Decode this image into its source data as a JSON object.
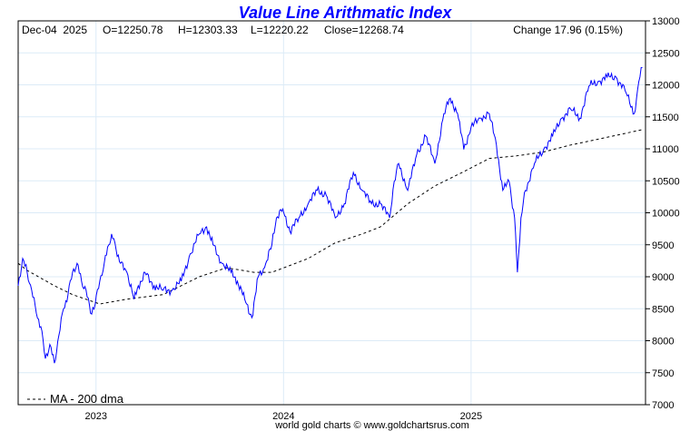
{
  "chart_data": {
    "type": "line",
    "title": "Value Line Arithmatic Index",
    "info": {
      "date": "Dec-04  2025",
      "open": "O=12250.78",
      "high": "H=12303.33",
      "low": "L=12220.22",
      "close": "Close=12268.74",
      "change": "Change 17.96 (0.15%)"
    },
    "ylim": [
      7000,
      13000
    ],
    "yticks": [
      7000,
      7500,
      8000,
      8500,
      9000,
      9500,
      10000,
      10500,
      11000,
      11500,
      12000,
      12500,
      13000
    ],
    "xlim": [
      2022.585,
      2025.93
    ],
    "xticks": [
      {
        "value": 2023,
        "label": "2023"
      },
      {
        "value": 2024,
        "label": "2024"
      },
      {
        "value": 2025,
        "label": "2025"
      }
    ],
    "grid": true,
    "legend": {
      "label": "MA - 200 dma",
      "position": "bottom-left"
    },
    "footer": "world gold charts © www.goldchartsrus.com",
    "colors": {
      "price": "#0000ff",
      "ma": "#000000",
      "title": "#0000ff",
      "grid": "#dcebf7"
    },
    "series": [
      {
        "name": "Price",
        "points": [
          [
            2022.585,
            8860
          ],
          [
            2022.609,
            9285
          ],
          [
            2022.633,
            9070
          ],
          [
            2022.657,
            8790
          ],
          [
            2022.682,
            8430
          ],
          [
            2022.706,
            8220
          ],
          [
            2022.73,
            7720
          ],
          [
            2022.754,
            7940
          ],
          [
            2022.778,
            7650
          ],
          [
            2022.802,
            8080
          ],
          [
            2022.827,
            8500
          ],
          [
            2022.851,
            8720
          ],
          [
            2022.875,
            9070
          ],
          [
            2022.899,
            9210
          ],
          [
            2022.923,
            8930
          ],
          [
            2022.947,
            8790
          ],
          [
            2022.971,
            8430
          ],
          [
            2022.996,
            8575
          ],
          [
            2023.02,
            8930
          ],
          [
            2023.044,
            9210
          ],
          [
            2023.068,
            9500
          ],
          [
            2023.083,
            9670
          ],
          [
            2023.107,
            9430
          ],
          [
            2023.131,
            9210
          ],
          [
            2023.165,
            9070
          ],
          [
            2023.203,
            8650
          ],
          [
            2023.237,
            8930
          ],
          [
            2023.261,
            9070
          ],
          [
            2023.31,
            8860
          ],
          [
            2023.358,
            8790
          ],
          [
            2023.406,
            8790
          ],
          [
            2023.455,
            8930
          ],
          [
            2023.503,
            9360
          ],
          [
            2023.551,
            9670
          ],
          [
            2023.59,
            9780
          ],
          [
            2023.624,
            9500
          ],
          [
            2023.672,
            9210
          ],
          [
            2023.72,
            9070
          ],
          [
            2023.754,
            8930
          ],
          [
            2023.793,
            8650
          ],
          [
            2023.831,
            8360
          ],
          [
            2023.865,
            9000
          ],
          [
            2023.899,
            9140
          ],
          [
            2023.938,
            9500
          ],
          [
            2023.962,
            9920
          ],
          [
            2023.996,
            10060
          ],
          [
            2024.034,
            9710
          ],
          [
            2024.082,
            9920
          ],
          [
            2024.131,
            10140
          ],
          [
            2024.179,
            10350
          ],
          [
            2024.227,
            10280
          ],
          [
            2024.276,
            9920
          ],
          [
            2024.324,
            10140
          ],
          [
            2024.372,
            10630
          ],
          [
            2024.42,
            10350
          ],
          [
            2024.469,
            10140
          ],
          [
            2024.517,
            10140
          ],
          [
            2024.566,
            9920
          ],
          [
            2024.59,
            10490
          ],
          [
            2024.614,
            10770
          ],
          [
            2024.662,
            10350
          ],
          [
            2024.71,
            10910
          ],
          [
            2024.758,
            11200
          ],
          [
            2024.807,
            10770
          ],
          [
            2024.855,
            11550
          ],
          [
            2024.889,
            11790
          ],
          [
            2024.928,
            11550
          ],
          [
            2024.961,
            10990
          ],
          [
            2025.0,
            11340
          ],
          [
            2025.048,
            11480
          ],
          [
            2025.097,
            11550
          ],
          [
            2025.135,
            11060
          ],
          [
            2025.169,
            10350
          ],
          [
            2025.203,
            10490
          ],
          [
            2025.232,
            9920
          ],
          [
            2025.247,
            9070
          ],
          [
            2025.266,
            9920
          ],
          [
            2025.29,
            10350
          ],
          [
            2025.338,
            10770
          ],
          [
            2025.387,
            10990
          ],
          [
            2025.435,
            11200
          ],
          [
            2025.483,
            11480
          ],
          [
            2025.531,
            11620
          ],
          [
            2025.58,
            11480
          ],
          [
            2025.628,
            11980
          ],
          [
            2025.676,
            12050
          ],
          [
            2025.725,
            12120
          ],
          [
            2025.773,
            12120
          ],
          [
            2025.821,
            11910
          ],
          [
            2025.87,
            11550
          ],
          [
            2025.894,
            12050
          ],
          [
            2025.913,
            12269
          ]
        ]
      },
      {
        "name": "MA - 200 dma",
        "points": [
          [
            2022.585,
            9210
          ],
          [
            2022.633,
            9100
          ],
          [
            2022.778,
            8860
          ],
          [
            2022.875,
            8720
          ],
          [
            2023.02,
            8575
          ],
          [
            2023.165,
            8650
          ],
          [
            2023.358,
            8720
          ],
          [
            2023.551,
            9000
          ],
          [
            2023.696,
            9140
          ],
          [
            2023.841,
            9070
          ],
          [
            2023.938,
            9070
          ],
          [
            2024.131,
            9285
          ],
          [
            2024.276,
            9530
          ],
          [
            2024.42,
            9670
          ],
          [
            2024.517,
            9780
          ],
          [
            2024.662,
            10140
          ],
          [
            2024.807,
            10420
          ],
          [
            2024.952,
            10630
          ],
          [
            2025.097,
            10850
          ],
          [
            2025.242,
            10890
          ],
          [
            2025.387,
            10950
          ],
          [
            2025.531,
            11060
          ],
          [
            2025.725,
            11180
          ],
          [
            2025.913,
            11300
          ]
        ]
      }
    ]
  }
}
